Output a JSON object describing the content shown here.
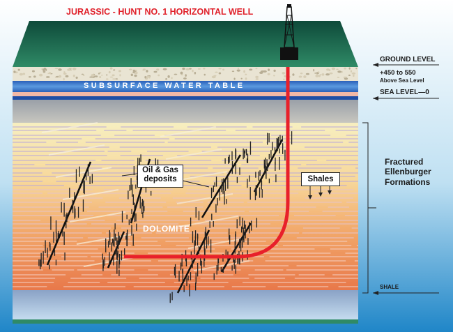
{
  "title": "JURASSIC - HUNT NO. 1 HORIZONTAL WELL",
  "labels": {
    "water_table": "SUBSURFACE WATER TABLE",
    "ground_level": "GROUND LEVEL",
    "elevation_line1": "+450  to 550",
    "elevation_line2": "Above Sea Level",
    "sea_level": "SEA LEVEL—0",
    "formations": "Fractured\nEllenburger\nFormations",
    "shale": "SHALE",
    "dolomite": "DOLOMITE",
    "oil_gas": "Oil & Gas\ndeposits",
    "shales": "Shales"
  },
  "colors": {
    "title": "#e0202a",
    "well_pipe": "#e8202a",
    "surface": "#1f6b52",
    "water_table": "#3a78c8",
    "sea": "#1f86c8"
  }
}
